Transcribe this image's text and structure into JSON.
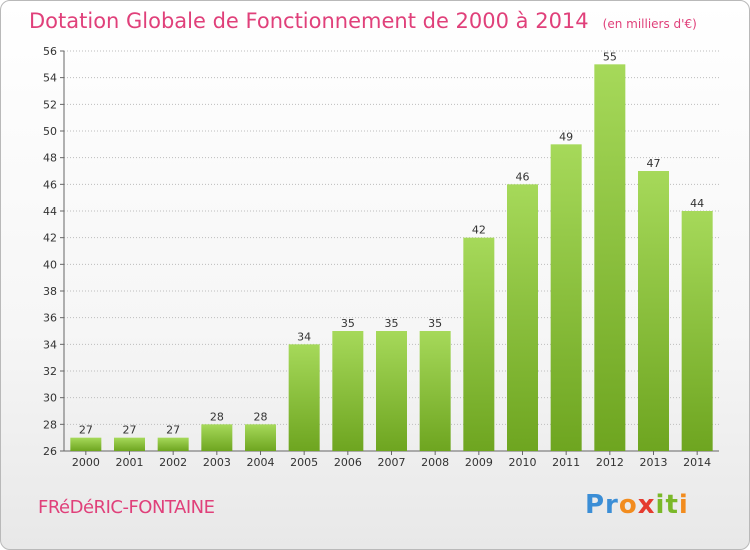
{
  "header": {
    "title": "Dotation Globale de Fonctionnement de 2000 à 2014",
    "subtitle": "(en milliers d'€)"
  },
  "footer": {
    "commune": "FRéDéRIC-FONTAINE",
    "logo_text": "Proxiti"
  },
  "colors": {
    "title": "#e0407a",
    "bar_light": "#a6d95a",
    "bar_dark": "#6ea520"
  },
  "chart_data": {
    "type": "bar",
    "title": "Dotation Globale de Fonctionnement de 2000 à 2014",
    "subtitle": "(en milliers d'€)",
    "xlabel": "",
    "ylabel": "",
    "categories": [
      "2000",
      "2001",
      "2002",
      "2003",
      "2004",
      "2005",
      "2006",
      "2007",
      "2008",
      "2009",
      "2010",
      "2011",
      "2012",
      "2013",
      "2014"
    ],
    "values": [
      27,
      27,
      27,
      28,
      28,
      34,
      35,
      35,
      35,
      42,
      46,
      49,
      55,
      47,
      44
    ],
    "ylim": [
      26,
      56
    ],
    "yticks": [
      26,
      28,
      30,
      32,
      34,
      36,
      38,
      40,
      42,
      44,
      46,
      48,
      50,
      52,
      54,
      56
    ],
    "grid": "horizontal-dotted",
    "legend": "none"
  }
}
